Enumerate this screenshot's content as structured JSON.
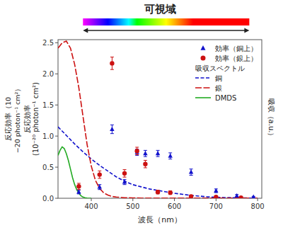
{
  "chart_data": {
    "type": "scatter",
    "title": "可視域",
    "xlabel": "波長（nm）",
    "ylabel": "反応効率\n(10⁻²⁰ photon⁻¹ cm²)",
    "y2label": "吸収（a.u.）",
    "annotations": [
      "反応効率（10",
      "−20 photon⁻¹ cm²）"
    ],
    "legend_section": "吸収スペクトル",
    "legend": "upper right",
    "grid": false,
    "xlim": [
      320,
      810
    ],
    "ylim": [
      0,
      2.55
    ],
    "y2lim": [
      0,
      5.55
    ],
    "xticks": [
      400,
      500,
      600,
      700,
      800
    ],
    "yticks": [
      {
        "value": 0.0,
        "label": "0.0"
      },
      0.5,
      {
        "value": 1.0,
        "label": "1.0"
      },
      1.5,
      {
        "value": 2.0,
        "label": "2.0"
      },
      2.5
    ],
    "spectrum_nm": [
      380,
      780
    ],
    "series": [
      {
        "name": "効率（銅上）",
        "type": "scatter",
        "marker": "triangle",
        "color": "#1111cc",
        "x": [
          370,
          420,
          450,
          480,
          510,
          530,
          560,
          590,
          640,
          700,
          750,
          790
        ],
        "values": [
          0.1,
          0.18,
          1.11,
          0.26,
          0.74,
          0.72,
          0.72,
          0.68,
          0.42,
          0.12,
          0.04,
          0.02
        ],
        "errors": [
          0.03,
          0.04,
          0.07,
          0.04,
          0.05,
          0.05,
          0.05,
          0.05,
          0.05,
          0.03,
          0.02,
          0.01
        ]
      },
      {
        "name": "効率（銀上）",
        "type": "scatter",
        "marker": "circle",
        "color": "#cc1111",
        "x": [
          370,
          420,
          450,
          480,
          510,
          530,
          560,
          590,
          640,
          700,
          760
        ],
        "values": [
          0.19,
          0.38,
          2.17,
          0.4,
          0.76,
          0.55,
          0.1,
          0.09,
          0.03,
          0.02,
          0.01
        ],
        "errors": [
          0.05,
          0.06,
          0.1,
          0.06,
          0.06,
          0.06,
          0.03,
          0.03,
          0.02,
          0.01,
          0.01
        ]
      },
      {
        "name": "銅",
        "type": "line",
        "line_style": "dashed",
        "color": "#1111cc",
        "axis": "y2",
        "x": [
          320,
          340,
          360,
          380,
          400,
          420,
          440,
          460,
          480,
          500,
          520,
          540,
          560,
          580,
          600,
          620,
          640,
          660,
          680,
          700,
          720,
          740,
          760,
          780,
          800
        ],
        "values": [
          2.5,
          2.2,
          1.9,
          1.625,
          1.375,
          1.15,
          0.95,
          0.75,
          0.6,
          0.475,
          0.4,
          0.325,
          0.275,
          0.225,
          0.175,
          0.1375,
          0.1,
          0.075,
          0.05,
          0.0375,
          0.025,
          0.02,
          0.0125,
          0.0075,
          0.005
        ]
      },
      {
        "name": "銀",
        "type": "line",
        "line_style": "longdashed",
        "color": "#cc1111",
        "axis": "y2",
        "x": [
          320,
          330,
          340,
          350,
          360,
          370,
          380,
          390,
          400,
          410,
          420,
          430,
          440,
          450,
          460,
          470,
          480,
          500,
          520,
          540,
          560,
          580,
          600,
          620,
          640,
          660,
          700,
          800
        ],
        "values": [
          5.25,
          5.4375,
          5.5,
          5.25,
          4.6875,
          3.875,
          2.875,
          1.875,
          1.125,
          0.625,
          0.34375,
          0.1875,
          0.1125,
          0.0625,
          0.04375,
          0.03125,
          0.01875,
          0.0125,
          0.00625,
          0.00625,
          0.00625,
          0.00625,
          0.00625,
          0.00625,
          0.00625,
          0.00625,
          0.00625,
          0.00625
        ]
      },
      {
        "name": "DMDS",
        "type": "line",
        "line_style": "solid",
        "color": "#22aa22",
        "axis": "y2",
        "x": [
          320,
          325,
          330,
          335,
          340,
          345,
          350,
          355,
          360,
          365,
          370,
          375,
          380,
          385,
          390,
          400
        ],
        "values": [
          1.5,
          1.68,
          1.8,
          1.74,
          1.56,
          1.32,
          1.02,
          0.72,
          0.48,
          0.3,
          0.18,
          0.09,
          0.042,
          0.018,
          0.006,
          0
        ]
      }
    ]
  }
}
